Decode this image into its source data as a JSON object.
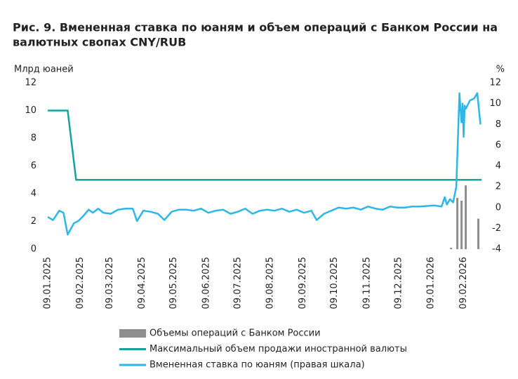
{
  "chart_data": {
    "type": "combo",
    "title": "Рис. 9. Вмененная ставка по юаням и объем операций с Банком России на",
    "subtitle": "валютных свопах CNY/RUB",
    "y_label": "Млрд юаней",
    "y2_label": "%",
    "xlim": [
      "09.01.2025",
      "26.02.2026"
    ],
    "xticks": [
      "09.01.2025",
      "09.02.2025",
      "09.03.2025",
      "09.04.2025",
      "09.05.2025",
      "09.06.2025",
      "09.07.2025",
      "09.08.2025",
      "09.09.2025",
      "09.10.2025",
      "09.11.2025",
      "09.12.2025",
      "09.01.2026",
      "09.02.2026"
    ],
    "ylim": [
      0,
      12
    ],
    "yticks": [
      0,
      2,
      4,
      6,
      8,
      10,
      12
    ],
    "y2lim": [
      -4,
      12
    ],
    "y2ticks": [
      -4,
      -2,
      0,
      2,
      4,
      6,
      8,
      10,
      12
    ],
    "grid": false,
    "series": [
      {
        "name": "Объемы операций с Банком России",
        "type": "bar",
        "color": "#8e8e8e",
        "x": [
          "28.01.2026",
          "03.02.2026",
          "07.02.2026",
          "11.02.2026",
          "23.02.2026"
        ],
        "values": [
          0.1,
          3.7,
          3.5,
          4.6,
          2.2
        ]
      },
      {
        "name": "Максимальный объем продажи иностранной валюты",
        "type": "line",
        "color": "#16a39b",
        "x": [
          "09.01.2025",
          "28.01.2025",
          "05.02.2025",
          "26.02.2026"
        ],
        "values": [
          10,
          10,
          5,
          5
        ]
      },
      {
        "name": "Вмененная ставка по юаням (правая шкала)",
        "type": "line",
        "color": "#2bb8e6",
        "axis": "y2",
        "x": [
          "09.01.2025",
          "14.01.2025",
          "20.01.2025",
          "24.01.2025",
          "28.01.2025",
          "03.02.2025",
          "07.02.2025",
          "12.02.2025",
          "17.02.2025",
          "21.02.2025",
          "26.02.2025",
          "03.03.2025",
          "10.03.2025",
          "17.03.2025",
          "24.03.2025",
          "31.03.2025",
          "04.04.2025",
          "10.04.2025",
          "17.04.2025",
          "24.04.2025",
          "30.04.2025",
          "07.05.2025",
          "14.05.2025",
          "21.05.2025",
          "28.05.2025",
          "04.06.2025",
          "11.06.2025",
          "18.06.2025",
          "25.06.2025",
          "02.07.2025",
          "09.07.2025",
          "16.07.2025",
          "23.07.2025",
          "30.07.2025",
          "06.08.2025",
          "13.08.2025",
          "20.08.2025",
          "27.08.2025",
          "03.09.2025",
          "10.09.2025",
          "17.09.2025",
          "22.09.2025",
          "29.09.2025",
          "06.10.2025",
          "13.10.2025",
          "20.10.2025",
          "27.10.2025",
          "03.11.2025",
          "10.11.2025",
          "17.11.2025",
          "24.11.2025",
          "01.12.2025",
          "08.12.2025",
          "15.12.2025",
          "22.12.2025",
          "29.12.2025",
          "12.01.2026",
          "19.01.2026",
          "22.01.2026",
          "24.01.2026",
          "27.01.2026",
          "30.01.2026",
          "02.02.2026",
          "05.02.2026",
          "06.02.2026",
          "07.02.2026",
          "08.02.2026",
          "09.02.2026",
          "10.02.2026",
          "11.02.2026",
          "15.02.2026",
          "19.02.2026",
          "22.02.2026",
          "25.02.2026"
        ],
        "values": [
          -0.9,
          -1.2,
          -0.3,
          -0.5,
          -2.6,
          -1.5,
          -1.3,
          -0.8,
          -0.2,
          -0.5,
          -0.1,
          -0.5,
          -0.6,
          -0.2,
          -0.1,
          -0.1,
          -1.3,
          -0.3,
          -0.4,
          -0.6,
          -1.2,
          -0.4,
          -0.2,
          -0.2,
          -0.3,
          -0.1,
          -0.5,
          -0.3,
          -0.2,
          -0.6,
          -0.4,
          -0.1,
          -0.6,
          -0.3,
          -0.2,
          -0.3,
          -0.1,
          -0.4,
          -0.2,
          -0.5,
          -0.3,
          -1.2,
          -0.6,
          -0.3,
          0.0,
          -0.1,
          0.0,
          -0.2,
          0.1,
          -0.1,
          -0.2,
          0.1,
          0.0,
          0.0,
          0.1,
          0.1,
          0.2,
          0.1,
          1.0,
          0.3,
          0.8,
          0.5,
          2.0,
          11.0,
          9.5,
          8.2,
          10.0,
          6.8,
          9.8,
          9.5,
          10.3,
          10.5,
          11.0,
          8.0
        ]
      }
    ]
  }
}
